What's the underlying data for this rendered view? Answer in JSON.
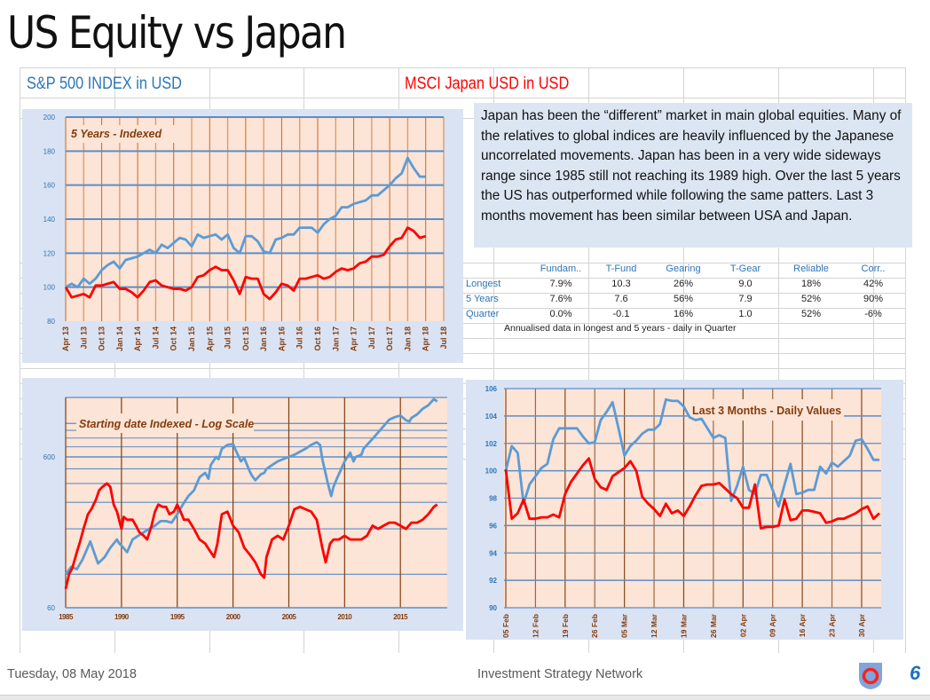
{
  "page": {
    "title": "US Equity vs Japan",
    "series_header_sp500": "S&P 500 INDEX  in  USD",
    "series_header_japan": "MSCI Japan USD  in  USD",
    "commentary": "Japan has been the “different” market in main global equities.  Many of the relatives to global indices are heavily influenced by the Japanese uncorrelated movements.  Japan has been in a very wide sideways range since 1985 still not reaching its 1989 high.  Over the last 5 years the US has outperformed while following the same patters.  Last 3 months movement has been similar between USA and Japan."
  },
  "stats_table": {
    "columns": [
      "Fundam..",
      "T-Fund",
      "Gearing",
      "T-Gear",
      "Reliable",
      "Corr.."
    ],
    "rows": [
      {
        "label": "Longest",
        "values": [
          "7.9%",
          "10.3",
          "26%",
          "9.0",
          "18%",
          "42%"
        ]
      },
      {
        "label": "5 Years",
        "values": [
          "7.6%",
          "7.6",
          "56%",
          "7.9",
          "52%",
          "90%"
        ]
      },
      {
        "label": "Quarter",
        "values": [
          "0.0%",
          "-0.1",
          "16%",
          "1.0",
          "52%",
          "-6%"
        ]
      }
    ],
    "note": "Annualised data in longest and 5 years - daily in Quarter"
  },
  "footer": {
    "date": "Tuesday, 08 May 2018",
    "organization": "Investment Strategy Network",
    "page_number": "6",
    "logo_icon": "shield-ring-logo"
  },
  "colors": {
    "sp500": "#5b9bd5",
    "japan": "#ff0000",
    "plot_bg": "#fce4d6",
    "panel_bg": "#dae3f3",
    "vgrid": "#c55a11",
    "hgrid": "#5b8ec8",
    "axis_text_y": "#2e75b6",
    "axis_text_x": "#843c0c"
  },
  "chart_data": [
    {
      "type": "line",
      "title": "5 Years - Indexed",
      "xlabel": "",
      "ylabel": "",
      "ylim": [
        80,
        200
      ],
      "yticks": [
        "80",
        "100",
        "120",
        "140",
        "160",
        "180",
        "200"
      ],
      "xticks": [
        "Apr 13",
        "Jul 13",
        "Oct 13",
        "Jan 14",
        "Apr 14",
        "Jul 14",
        "Oct 14",
        "Jan 15",
        "Apr 15",
        "Jul 15",
        "Oct 15",
        "Jan 16",
        "Apr 16",
        "Jul 16",
        "Oct 16",
        "Jan 17",
        "Apr 17",
        "Jul 17",
        "Oct 17",
        "Jan 18",
        "Apr 18",
        "Jul 18"
      ],
      "x_unit": "months since Apr 13",
      "grid": true,
      "series": [
        {
          "name": "S&P 500 INDEX in USD",
          "color": "#5b9bd5",
          "x": [
            0,
            1,
            2,
            3,
            4,
            5,
            6,
            7,
            8,
            9,
            10,
            11,
            12,
            13,
            14,
            15,
            16,
            17,
            18,
            19,
            20,
            21,
            22,
            23,
            24,
            25,
            26,
            27,
            28,
            29,
            30,
            31,
            32,
            33,
            34,
            35,
            36,
            37,
            38,
            39,
            40,
            41,
            42,
            43,
            44,
            45,
            46,
            47,
            48,
            49,
            50,
            51,
            52,
            53,
            54,
            55,
            56,
            57,
            58,
            59,
            60
          ],
          "values": [
            100,
            102,
            100,
            105,
            102,
            105,
            110,
            113,
            115,
            111,
            116,
            117,
            118,
            120,
            122,
            120,
            125,
            123,
            126,
            129,
            128,
            124,
            131,
            129,
            130,
            131,
            128,
            131,
            123,
            120,
            130,
            130,
            127,
            121,
            120,
            128,
            129,
            131,
            131,
            135,
            135,
            135,
            132,
            137,
            140,
            142,
            147,
            147,
            149,
            150,
            151,
            154,
            154,
            157,
            160,
            164,
            167,
            176,
            170,
            165,
            165
          ]
        },
        {
          "name": "MSCI Japan USD in USD",
          "color": "#ff0000",
          "x": [
            0,
            1,
            2,
            3,
            4,
            5,
            6,
            7,
            8,
            9,
            10,
            11,
            12,
            13,
            14,
            15,
            16,
            17,
            18,
            19,
            20,
            21,
            22,
            23,
            24,
            25,
            26,
            27,
            28,
            29,
            30,
            31,
            32,
            33,
            34,
            35,
            36,
            37,
            38,
            39,
            40,
            41,
            42,
            43,
            44,
            45,
            46,
            47,
            48,
            49,
            50,
            51,
            52,
            53,
            54,
            55,
            56,
            57,
            58,
            59,
            60
          ],
          "values": [
            100,
            94,
            95,
            96,
            94,
            101,
            101,
            102,
            103,
            99,
            99,
            97,
            94,
            98,
            103,
            104,
            101,
            100,
            99,
            99,
            98,
            100,
            106,
            107,
            110,
            112,
            110,
            110,
            104,
            96,
            106,
            105,
            105,
            96,
            93,
            97,
            102,
            101,
            98,
            105,
            105,
            106,
            107,
            105,
            106,
            109,
            111,
            110,
            111,
            114,
            115,
            118,
            118,
            119,
            124,
            128,
            129,
            135,
            133,
            129,
            130
          ]
        }
      ]
    },
    {
      "type": "line",
      "title": "Starting date Indexed - Log Scale",
      "xlabel": "",
      "ylabel": "",
      "yscale": "log",
      "ylim": [
        60,
        1400
      ],
      "yticks": [
        "60",
        "600"
      ],
      "xlim": [
        1985,
        2019
      ],
      "xticks": [
        "1985",
        "1990",
        "1995",
        "2000",
        "2005",
        "2010",
        "2015"
      ],
      "grid": true,
      "series": [
        {
          "name": "S&P 500 INDEX in USD",
          "color": "#5b9bd5",
          "x": [
            1985,
            1985.5,
            1986,
            1986.5,
            1986.8,
            1987.2,
            1987.7,
            1987.9,
            1988.5,
            1989,
            1989.6,
            1989.8,
            1990,
            1990.5,
            1991,
            1991.5,
            1992,
            1992.5,
            1993,
            1993.5,
            1994,
            1994.5,
            1995,
            1995.5,
            1996,
            1996.5,
            1997,
            1997.5,
            1997.8,
            1998,
            1998.5,
            1998.7,
            1999,
            1999.5,
            2000,
            2000.3,
            2000.7,
            2001,
            2001.5,
            2001.7,
            2002,
            2002.5,
            2002.8,
            2003,
            2003.5,
            2004,
            2004.5,
            2005,
            2005.5,
            2006,
            2006.5,
            2007,
            2007.5,
            2007.8,
            2008,
            2008.5,
            2008.8,
            2009,
            2009.3,
            2009.7,
            2010,
            2010.5,
            2010.8,
            2011,
            2011.5,
            2011.7,
            2012,
            2012.5,
            2013,
            2013.5,
            2014,
            2014.5,
            2015,
            2015.5,
            2015.8,
            2016,
            2016.5,
            2017,
            2017.5,
            2018,
            2018.3
          ],
          "values": [
            100,
            112,
            108,
            125,
            140,
            165,
            130,
            118,
            130,
            150,
            170,
            160,
            155,
            140,
            170,
            180,
            190,
            200,
            210,
            225,
            225,
            220,
            250,
            290,
            330,
            360,
            440,
            470,
            430,
            530,
            600,
            580,
            680,
            720,
            730,
            650,
            560,
            590,
            480,
            450,
            420,
            460,
            470,
            500,
            530,
            560,
            580,
            600,
            620,
            650,
            680,
            720,
            750,
            720,
            580,
            400,
            330,
            380,
            430,
            500,
            560,
            640,
            560,
            600,
            620,
            680,
            720,
            790,
            870,
            960,
            1060,
            1100,
            1130,
            1050,
            1030,
            1090,
            1150,
            1250,
            1320,
            1450,
            1400
          ]
        },
        {
          "name": "MSCI Japan USD in USD",
          "color": "#ff0000",
          "x": [
            1985,
            1985.3,
            1985.6,
            1986,
            1986.3,
            1986.6,
            1987,
            1987.3,
            1987.7,
            1988,
            1988.3,
            1988.7,
            1989,
            1989.3,
            1989.6,
            1990,
            1990.2,
            1990.5,
            1991,
            1991.3,
            1991.6,
            1992,
            1992.3,
            1992.7,
            1993,
            1993.3,
            1993.7,
            1994,
            1994.3,
            1994.7,
            1995,
            1995.3,
            1995.6,
            1996,
            1996.5,
            1997,
            1997.5,
            1998,
            1998.3,
            1998.6,
            1999,
            1999.5,
            2000,
            2000.5,
            2001,
            2001.5,
            2002,
            2002.5,
            2002.8,
            2003,
            2003.5,
            2004,
            2004.5,
            2005,
            2005.5,
            2006,
            2006.5,
            2007,
            2007.5,
            2008,
            2008.3,
            2008.7,
            2009,
            2009.5,
            2010,
            2010.5,
            2011,
            2011.5,
            2012,
            2012.5,
            2013,
            2013.5,
            2014,
            2014.5,
            2015,
            2015.5,
            2016,
            2016.5,
            2017,
            2017.5,
            2018,
            2018.3
          ],
          "values": [
            80,
            100,
            110,
            140,
            165,
            200,
            250,
            270,
            310,
            360,
            380,
            400,
            380,
            290,
            260,
            200,
            240,
            230,
            230,
            210,
            190,
            180,
            170,
            210,
            260,
            290,
            280,
            280,
            250,
            260,
            290,
            260,
            230,
            230,
            200,
            170,
            160,
            140,
            130,
            160,
            250,
            260,
            210,
            190,
            150,
            135,
            120,
            100,
            95,
            130,
            170,
            180,
            170,
            210,
            270,
            280,
            270,
            260,
            230,
            150,
            120,
            160,
            170,
            170,
            180,
            170,
            170,
            170,
            180,
            210,
            200,
            210,
            220,
            220,
            210,
            200,
            220,
            220,
            230,
            250,
            280,
            290
          ]
        }
      ]
    },
    {
      "type": "line",
      "title": "Last 3 Months - Daily Values",
      "xlabel": "",
      "ylabel": "",
      "ylim": [
        90,
        106
      ],
      "yticks": [
        "90",
        "92",
        "94",
        "96",
        "98",
        "100",
        "102",
        "104",
        "106"
      ],
      "xticks": [
        "05 Feb",
        "12 Feb",
        "19 Feb",
        "26 Feb",
        "05 Mar",
        "12 Mar",
        "19 Mar",
        "26 Mar",
        "02 Apr",
        "09 Apr",
        "16 Apr",
        "23 Apr",
        "30 Apr"
      ],
      "x_unit": "trading days since 05 Feb",
      "grid": true,
      "series": [
        {
          "name": "S&P 500 INDEX in USD",
          "color": "#5b9bd5",
          "x": [
            0,
            1,
            2,
            3,
            4,
            5,
            6,
            7,
            8,
            9,
            10,
            11,
            12,
            13,
            14,
            15,
            16,
            17,
            18,
            19,
            20,
            21,
            22,
            23,
            24,
            25,
            26,
            27,
            28,
            29,
            30,
            31,
            32,
            33,
            34,
            35,
            36,
            37,
            38,
            39,
            40,
            41,
            42,
            43,
            44,
            45,
            46,
            47,
            48,
            49,
            50,
            51,
            52,
            53,
            54,
            55,
            56,
            57,
            58,
            59,
            60,
            61,
            62,
            63
          ],
          "values": [
            100,
            101.8,
            101.3,
            97.6,
            99,
            99.6,
            100.2,
            100.5,
            102.3,
            103.1,
            103.1,
            103.1,
            103.1,
            102.5,
            102,
            102.1,
            103.7,
            104.3,
            105,
            103.1,
            101.1,
            101.8,
            102.2,
            102.7,
            103,
            103,
            103.4,
            105.2,
            105.1,
            105.1,
            104.7,
            103.9,
            103.7,
            103.8,
            103.1,
            102.4,
            102.6,
            102.4,
            97.8,
            98.9,
            100.3,
            98.6,
            98.3,
            99.7,
            99.7,
            98.6,
            97.4,
            99,
            100.5,
            98.3,
            98.4,
            98.6,
            98.6,
            100.3,
            99.8,
            100.6,
            100.3,
            100.7,
            101.1,
            102.2,
            102.3,
            101.6,
            100.8,
            100.8
          ]
        },
        {
          "name": "MSCI Japan USD in USD",
          "color": "#ff0000",
          "x": [
            0,
            1,
            2,
            3,
            4,
            5,
            6,
            7,
            8,
            9,
            10,
            11,
            12,
            13,
            14,
            15,
            16,
            17,
            18,
            19,
            20,
            21,
            22,
            23,
            24,
            25,
            26,
            27,
            28,
            29,
            30,
            31,
            32,
            33,
            34,
            35,
            36,
            37,
            38,
            39,
            40,
            41,
            42,
            43,
            44,
            45,
            46,
            47,
            48,
            49,
            50,
            51,
            52,
            53,
            54,
            55,
            56,
            57,
            58,
            59,
            60,
            61,
            62,
            63
          ],
          "values": [
            100.1,
            96.5,
            96.9,
            97.9,
            96.5,
            96.5,
            96.6,
            96.6,
            96.8,
            96.6,
            98.3,
            99.2,
            99.8,
            100.4,
            100.9,
            99.4,
            98.8,
            98.6,
            99.6,
            99.9,
            100.2,
            100.7,
            100,
            98.1,
            97.6,
            97.2,
            96.7,
            97.6,
            96.9,
            97.1,
            96.7,
            97.4,
            98.2,
            98.9,
            99,
            99,
            99.1,
            98.7,
            98.3,
            98,
            97.3,
            97.3,
            99,
            95.8,
            95.9,
            95.9,
            96,
            97.9,
            96.4,
            96.5,
            97.1,
            97.1,
            97,
            96.9,
            96.2,
            96.3,
            96.5,
            96.5,
            96.7,
            96.9,
            97.2,
            97.4,
            96.5,
            96.9
          ]
        }
      ]
    }
  ]
}
